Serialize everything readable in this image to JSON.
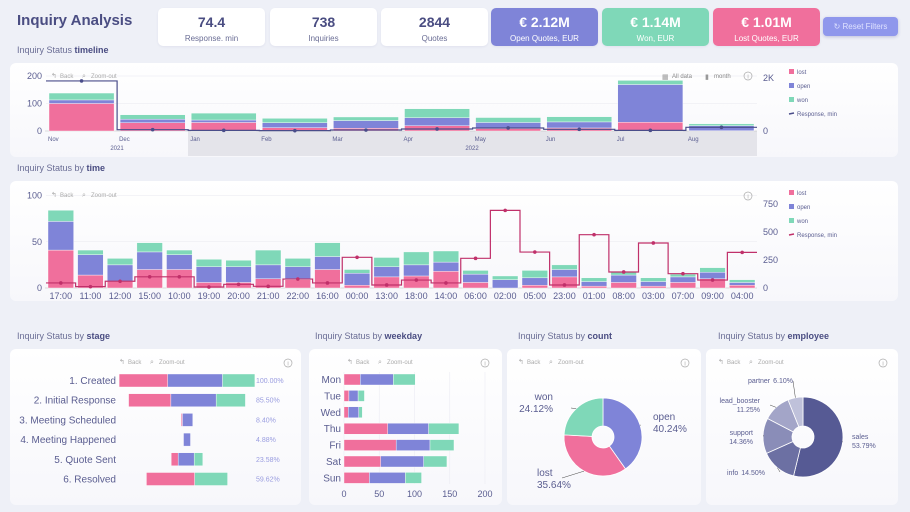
{
  "header": {
    "title": "Inquiry Analysis",
    "reset_label": "Reset Filters"
  },
  "kpis": [
    {
      "value": "74.4",
      "label": "Response. min"
    },
    {
      "value": "738",
      "label": "Inquiries"
    },
    {
      "value": "2844",
      "label": "Quotes"
    },
    {
      "value": "€ 2.12M",
      "label": "Open Quotes, EUR",
      "color": "#7f84d8"
    },
    {
      "value": "€ 1.14M",
      "label": "Won, EUR",
      "color": "#7fd8b8"
    },
    {
      "value": "€ 1.01M",
      "label": "Lost Quotes, EUR",
      "color": "#f06f9c"
    }
  ],
  "colors": {
    "lost": "#f06f9c",
    "open": "#7f84d8",
    "won": "#7fd8b8",
    "response_timeline": "#4a4d8a",
    "response_time": "#c0306a"
  },
  "controls": {
    "back": "Back",
    "zoom_out": "Zoom-out",
    "all_data": "All data",
    "month": "month"
  },
  "sections": {
    "timeline": {
      "prefix": "Inquiry Status ",
      "bold": "timeline"
    },
    "time": {
      "prefix": "Inquiry Status by ",
      "bold": "time"
    },
    "stage": {
      "prefix": "Inquiry Status by ",
      "bold": "stage"
    },
    "weekday": {
      "prefix": "Inquiry Status by ",
      "bold": "weekday"
    },
    "count": {
      "prefix": "Inquiry Status by ",
      "bold": "count"
    },
    "employee": {
      "prefix": "Inquiry Status by ",
      "bold": "employee"
    }
  },
  "legend": [
    "lost",
    "open",
    "won",
    "Response, min"
  ],
  "chart_data": [
    {
      "id": "timeline",
      "type": "bar",
      "stacked": true,
      "categories": [
        "Nov",
        "Dec",
        "Jan",
        "Feb",
        "Mar",
        "Apr",
        "May",
        "Jun",
        "Jul",
        "Aug"
      ],
      "year_labels": [
        "2021",
        "2022"
      ],
      "series": [
        {
          "name": "lost",
          "values": [
            100,
            30,
            31,
            12,
            10,
            19,
            9,
            11,
            32,
            1
          ]
        },
        {
          "name": "open",
          "values": [
            13,
            13,
            9,
            18,
            28,
            29,
            22,
            22,
            137,
            18
          ]
        },
        {
          "name": "won",
          "values": [
            25,
            16,
            25,
            16,
            13,
            33,
            18,
            19,
            15,
            7
          ]
        },
        {
          "name": "Response, min",
          "type": "step-line",
          "axis": "right",
          "values": [
            1890,
            50,
            25,
            13,
            38,
            76,
            114,
            63,
            25,
            140
          ]
        }
      ],
      "ylim": [
        0,
        200
      ],
      "y2lim": [
        0,
        2000
      ],
      "yticks": [
        "0",
        "100",
        "200"
      ],
      "y2ticks": [
        "0",
        "2K"
      ],
      "grid": true,
      "legend": "right"
    },
    {
      "id": "time",
      "type": "bar",
      "stacked": true,
      "categories": [
        "17:00",
        "11:00",
        "12:00",
        "15:00",
        "10:00",
        "19:00",
        "20:00",
        "21:00",
        "22:00",
        "16:00",
        "00:00",
        "13:00",
        "18:00",
        "14:00",
        "06:00",
        "02:00",
        "05:00",
        "23:00",
        "01:00",
        "08:00",
        "03:00",
        "07:00",
        "09:00",
        "04:00"
      ],
      "series": [
        {
          "name": "lost",
          "values": [
            41,
            14,
            7,
            20,
            20,
            6,
            6,
            10,
            9,
            20,
            3,
            12,
            13,
            18,
            6,
            0,
            3,
            12,
            2,
            6,
            2,
            6,
            10,
            3
          ]
        },
        {
          "name": "open",
          "values": [
            31,
            22,
            18,
            19,
            16,
            17,
            17,
            15,
            14,
            14,
            13,
            11,
            12,
            10,
            9,
            9,
            8,
            8,
            5,
            8,
            5,
            6,
            7,
            3
          ]
        },
        {
          "name": "won",
          "values": [
            12,
            5,
            7,
            10,
            5,
            8,
            7,
            16,
            9,
            15,
            4,
            10,
            14,
            12,
            4,
            4,
            8,
            5,
            4,
            3,
            4,
            3,
            5,
            3
          ]
        },
        {
          "name": "Response, min",
          "type": "step-line",
          "axis": "right",
          "values": [
            45,
            12,
            60,
            100,
            100,
            9,
            33,
            15,
            80,
            45,
            274,
            27,
            71,
            45,
            265,
            693,
            321,
            27,
            476,
            143,
            402,
            128,
            71,
            318
          ]
        }
      ],
      "ylim": [
        0,
        100
      ],
      "y2lim": [
        0,
        750
      ],
      "yticks": [
        "0",
        "50",
        "100"
      ],
      "y2ticks": [
        "0",
        "250",
        "500",
        "750"
      ],
      "grid": true,
      "legend": "right"
    },
    {
      "id": "stage",
      "type": "bar",
      "orientation": "horizontal",
      "funnel": true,
      "categories": [
        "1. Created",
        "2. Initial Response",
        "3. Meeting Scheduled",
        "4. Meeting Happened",
        "5. Quote Sent",
        "6. Resolved"
      ],
      "series": [
        {
          "name": "lost",
          "values": [
            264,
            230,
            7,
            0,
            38,
            262
          ]
        },
        {
          "name": "open",
          "values": [
            298,
            246,
            56,
            38,
            87,
            0
          ]
        },
        {
          "name": "won",
          "values": [
            176,
            159,
            0,
            0,
            47,
            179
          ]
        }
      ],
      "labels": [
        "100.00%",
        "85.50%",
        "8.40%",
        "4.88%",
        "23.58%",
        "59.62%"
      ]
    },
    {
      "id": "weekday",
      "type": "bar",
      "orientation": "horizontal",
      "stacked": true,
      "categories": [
        "Mon",
        "Tue",
        "Wed",
        "Thu",
        "Fri",
        "Sat",
        "Sun"
      ],
      "series": [
        {
          "name": "lost",
          "values": [
            23,
            7,
            6,
            62,
            74,
            52,
            36
          ]
        },
        {
          "name": "open",
          "values": [
            47,
            13,
            15,
            58,
            48,
            61,
            51
          ]
        },
        {
          "name": "won",
          "values": [
            31,
            9,
            5,
            43,
            34,
            33,
            23
          ]
        }
      ],
      "xlim": [
        0,
        200
      ],
      "xticks": [
        "0",
        "50",
        "100",
        "150",
        "200"
      ],
      "grid": true
    },
    {
      "id": "count",
      "type": "pie",
      "donut": true,
      "slices": [
        {
          "name": "open",
          "pct": "40.24%",
          "value": 40.24,
          "color": "#7f84d8"
        },
        {
          "name": "lost",
          "pct": "35.64%",
          "value": 35.64,
          "color": "#f06f9c"
        },
        {
          "name": "won",
          "pct": "24.12%",
          "value": 24.12,
          "color": "#7fd8b8"
        }
      ]
    },
    {
      "id": "employee",
      "type": "pie",
      "donut": true,
      "slices": [
        {
          "name": "sales",
          "pct": "53.79%",
          "value": 53.79,
          "color": "#565a94"
        },
        {
          "name": "info",
          "pct": "14.50%",
          "value": 14.5,
          "color": "#6c70a3"
        },
        {
          "name": "support",
          "pct": "14.36%",
          "value": 14.36,
          "color": "#8a8db8"
        },
        {
          "name": "lead_booster",
          "pct": "11.25%",
          "value": 11.25,
          "color": "#a3a5c8"
        },
        {
          "name": "partner",
          "pct": "6.10%",
          "value": 6.1,
          "color": "#bfc1da"
        }
      ]
    }
  ]
}
